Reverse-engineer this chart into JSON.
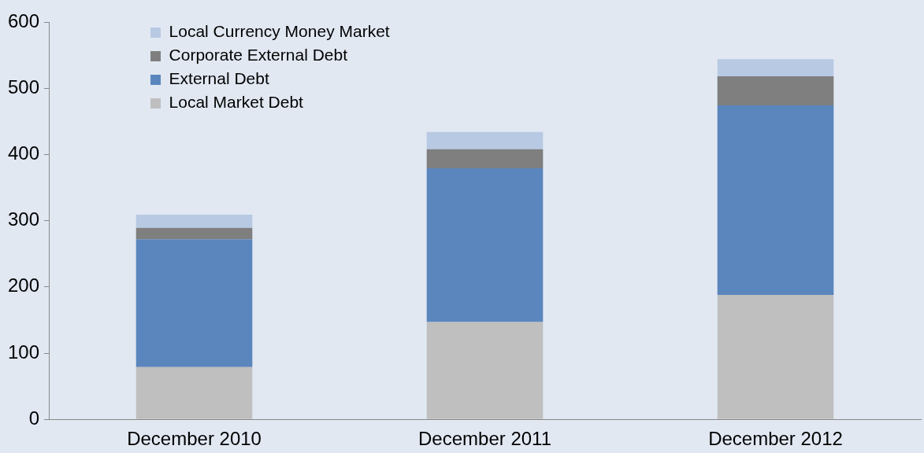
{
  "chart_data": {
    "type": "bar",
    "stacked": true,
    "categories": [
      "December 2010",
      "December 2011",
      "December 2012"
    ],
    "series": [
      {
        "name": "Local Market Debt",
        "color": "#bfbfbf",
        "values": [
          79,
          147,
          188
        ]
      },
      {
        "name": "External Debt",
        "color": "#5b86bd",
        "values": [
          193,
          232,
          286
        ]
      },
      {
        "name": "Corporate External Debt",
        "color": "#7f7f7f",
        "values": [
          17,
          29,
          44
        ]
      },
      {
        "name": "Local Currency Money Market",
        "color": "#b8c9e3",
        "values": [
          20,
          26,
          26
        ]
      }
    ],
    "ylim": [
      0,
      600
    ],
    "yticks": [
      0,
      100,
      200,
      300,
      400,
      500,
      600
    ],
    "grid": false,
    "legend": "top left"
  }
}
